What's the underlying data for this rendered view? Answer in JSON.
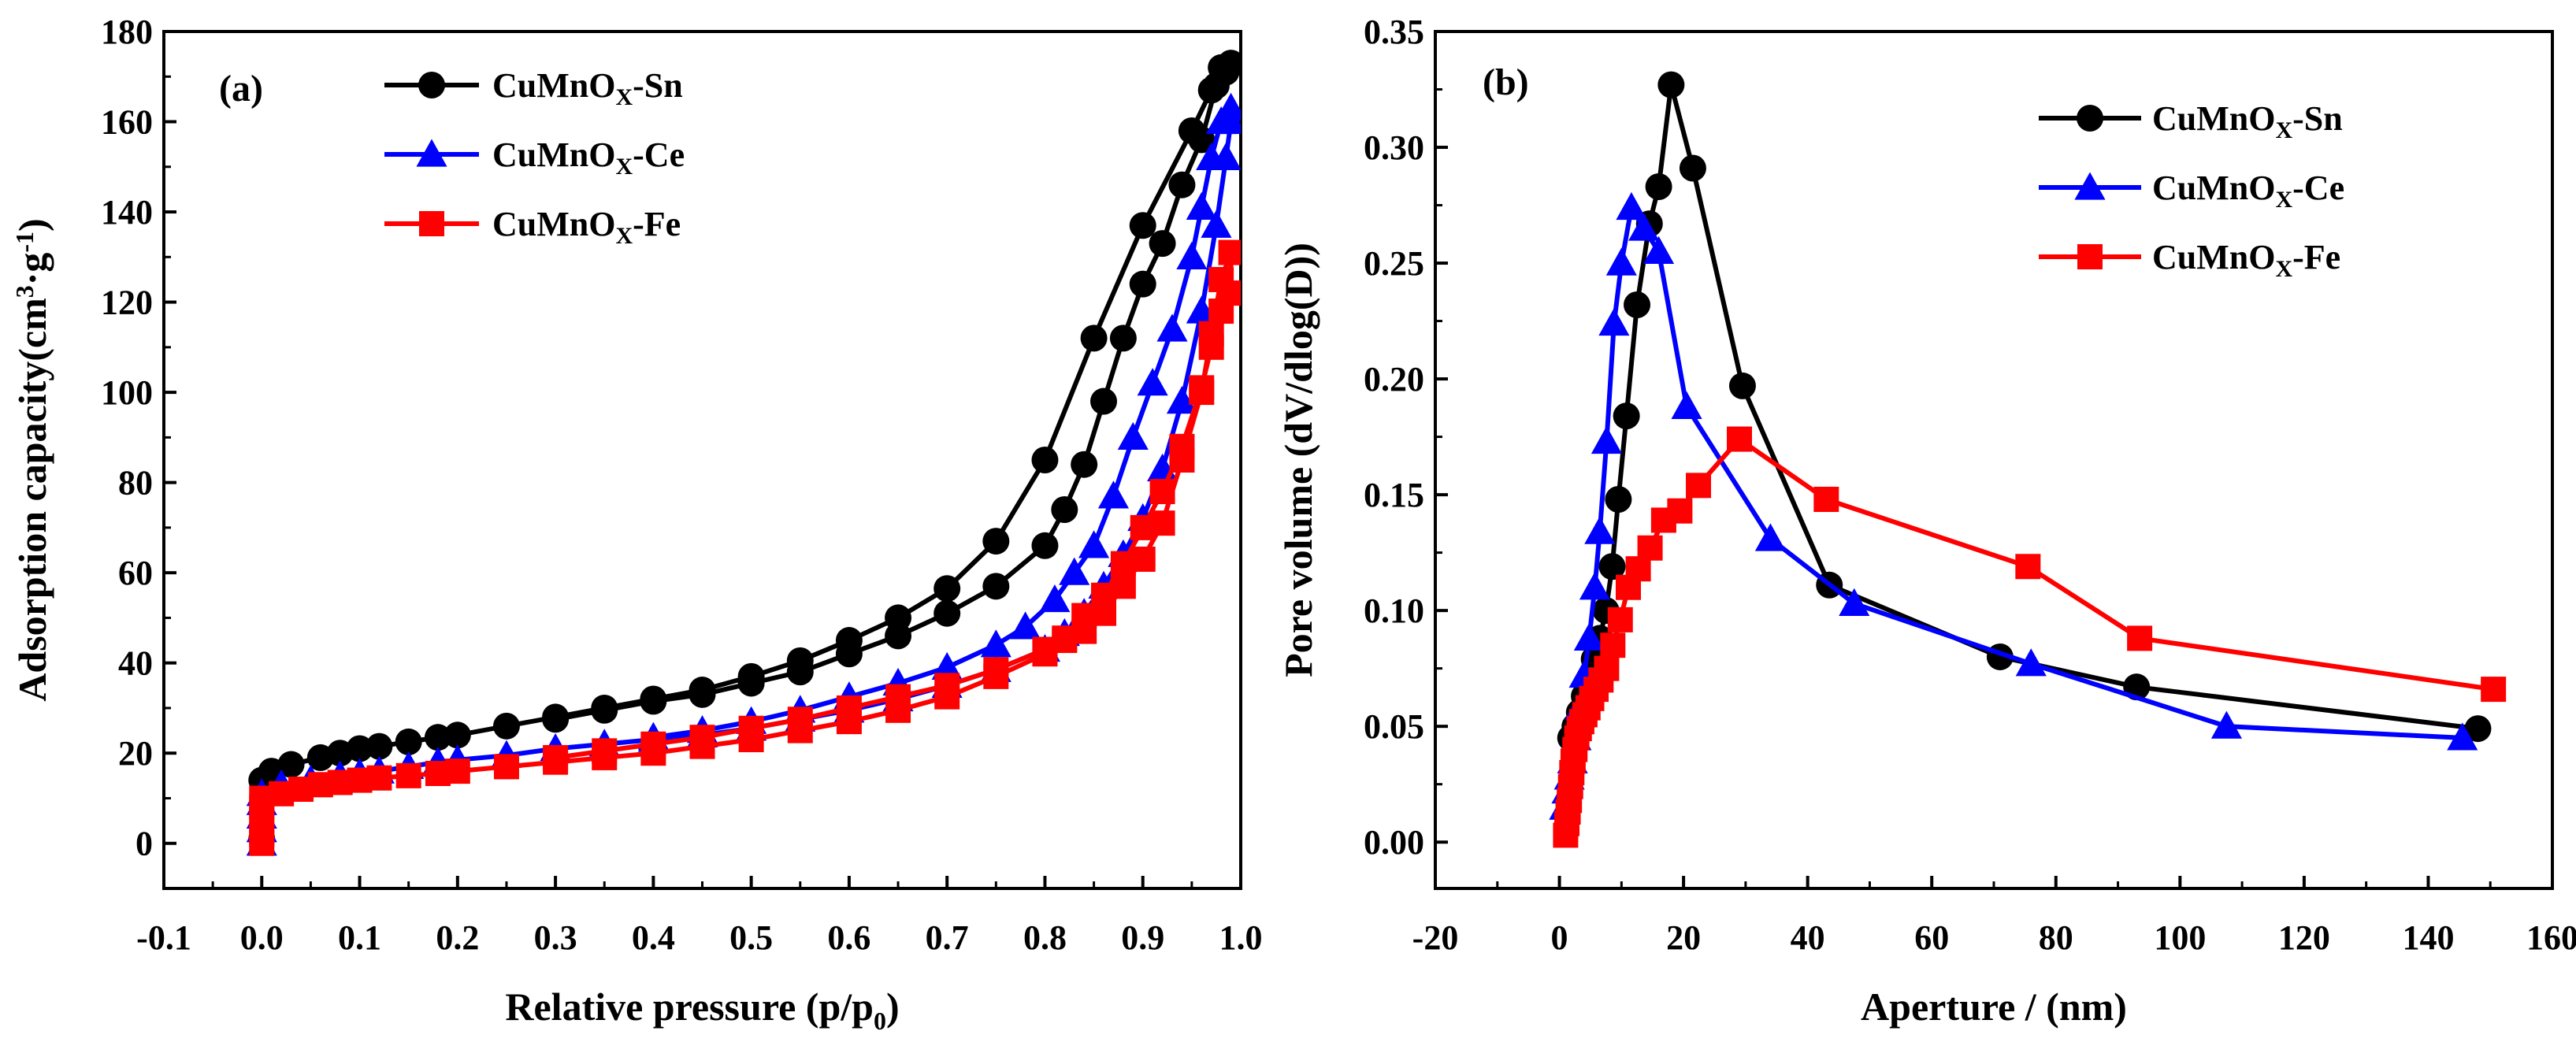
{
  "chart_data": [
    {
      "type": "line",
      "panel_label": "(a)",
      "xlabel": {
        "main": "Relative pressure (p/p",
        "sub": "0",
        "tail": ")"
      },
      "ylabel": {
        "main": "Adsorption capacity(cm",
        "sup1": "3",
        "mid": "·g",
        "sup2": "-1",
        "tail": ")"
      },
      "xlim": [
        -0.1,
        1.0
      ],
      "ylim": [
        -10,
        180
      ],
      "xticks": [
        "-0.1",
        "0.0",
        "0.1",
        "0.2",
        "0.3",
        "0.4",
        "0.5",
        "0.6",
        "0.7",
        "0.8",
        "0.9",
        "1.0"
      ],
      "xtick_values": [
        -0.1,
        0.0,
        0.1,
        0.2,
        0.3,
        0.4,
        0.5,
        0.6,
        0.7,
        0.8,
        0.9,
        1.0
      ],
      "yticks": [
        "0",
        "20",
        "40",
        "60",
        "80",
        "100",
        "120",
        "140",
        "160",
        "180"
      ],
      "ytick_values": [
        0,
        20,
        40,
        60,
        80,
        100,
        120,
        140,
        160,
        180
      ],
      "legend_position": "top-left",
      "series": [
        {
          "name": "CuMnOX-Sn",
          "label_main": "CuMnO",
          "label_sub": "X",
          "label_tail": "-Sn",
          "color": "#000000",
          "marker": "circle",
          "x": [
            0.0,
            0.0,
            0.01,
            0.03,
            0.06,
            0.08,
            0.1,
            0.12,
            0.15,
            0.18,
            0.2,
            0.25,
            0.3,
            0.35,
            0.4,
            0.45,
            0.5,
            0.55,
            0.6,
            0.65,
            0.7,
            0.75,
            0.8,
            0.85,
            0.9,
            0.95,
            0.97,
            0.98,
            0.99,
            0.985,
            0.975,
            0.96,
            0.94,
            0.92,
            0.9,
            0.88,
            0.86,
            0.84,
            0.82,
            0.8,
            0.75,
            0.7,
            0.65,
            0.6,
            0.55,
            0.5,
            0.45,
            0.4,
            0.35,
            0.3
          ],
          "y": [
            1,
            14,
            16,
            17.5,
            19,
            20,
            21,
            21.5,
            22.5,
            23.5,
            24,
            26,
            28,
            30,
            32,
            34,
            37,
            40.5,
            45,
            50,
            56.5,
            67,
            85,
            112,
            137,
            158,
            167,
            172,
            173,
            171,
            168,
            156,
            146,
            133,
            124,
            112,
            98,
            84,
            74,
            66,
            57,
            51,
            46,
            42,
            38,
            35.5,
            33,
            31.5,
            29.5,
            27.5
          ]
        },
        {
          "name": "CuMnOX-Ce",
          "label_main": "CuMnO",
          "label_sub": "X",
          "label_tail": "-Ce",
          "color": "#0000ff",
          "marker": "triangle",
          "x": [
            0.0,
            0.0,
            0.0,
            0.0,
            0.0,
            0.02,
            0.05,
            0.08,
            0.1,
            0.12,
            0.15,
            0.18,
            0.2,
            0.25,
            0.3,
            0.35,
            0.4,
            0.45,
            0.5,
            0.55,
            0.6,
            0.65,
            0.7,
            0.75,
            0.8,
            0.82,
            0.84,
            0.86,
            0.88,
            0.9,
            0.92,
            0.94,
            0.96,
            0.975,
            0.985,
            0.99,
            0.99,
            0.98,
            0.97,
            0.96,
            0.95,
            0.93,
            0.91,
            0.89,
            0.87,
            0.85,
            0.83,
            0.81,
            0.78,
            0.75,
            0.7,
            0.65,
            0.6,
            0.55,
            0.5,
            0.45,
            0.4
          ],
          "y": [
            0,
            3,
            6,
            9,
            11,
            13,
            14,
            15,
            15.5,
            16,
            17,
            18,
            18.5,
            19.5,
            21,
            22,
            23,
            24,
            25.5,
            27.5,
            29.5,
            32,
            35,
            38.5,
            43,
            46.5,
            51,
            57,
            64,
            72,
            83,
            98,
            118,
            137,
            152,
            160,
            163,
            160,
            152,
            141,
            130,
            114,
            102,
            90,
            77,
            66,
            60,
            54,
            48,
            44,
            39,
            35.5,
            32.5,
            29.5,
            27,
            25,
            23.5
          ]
        },
        {
          "name": "CuMnOX-Fe",
          "label_main": "CuMnO",
          "label_sub": "X",
          "label_tail": "-Fe",
          "color": "#ff0000",
          "marker": "square",
          "x": [
            0.0,
            0.0,
            0.0,
            0.0,
            0.0,
            0.02,
            0.04,
            0.06,
            0.08,
            0.1,
            0.12,
            0.15,
            0.18,
            0.2,
            0.25,
            0.3,
            0.35,
            0.4,
            0.45,
            0.5,
            0.55,
            0.6,
            0.65,
            0.7,
            0.75,
            0.8,
            0.82,
            0.84,
            0.86,
            0.88,
            0.9,
            0.92,
            0.94,
            0.96,
            0.97,
            0.98,
            0.99,
            0.99,
            0.98,
            0.97,
            0.96,
            0.94,
            0.92,
            0.9,
            0.88,
            0.86,
            0.84,
            0.82,
            0.8,
            0.75,
            0.7,
            0.65,
            0.6,
            0.55,
            0.5,
            0.45,
            0.4,
            0.35,
            0.3
          ],
          "y": [
            0,
            2,
            5,
            8,
            10,
            11,
            12,
            13,
            13.5,
            14,
            14.5,
            15,
            15.5,
            16,
            17,
            18,
            19,
            20,
            21.5,
            23,
            25,
            27,
            29.5,
            32.5,
            37,
            42,
            45.5,
            50.5,
            55,
            62,
            70,
            78,
            88,
            101,
            110,
            118,
            122,
            131,
            125,
            113,
            100,
            85,
            71,
            63,
            57,
            51,
            47,
            45,
            43,
            38.5,
            35,
            32.5,
            30,
            27.5,
            25.5,
            23.5,
            22,
            20.5,
            19
          ]
        }
      ]
    },
    {
      "type": "line",
      "panel_label": "(b)",
      "xlabel": {
        "main": "Aperture / (nm)"
      },
      "ylabel": {
        "main": "Pore volume (dV/dlog(D))"
      },
      "xlim": [
        -20,
        160
      ],
      "ylim": [
        -0.02,
        0.35
      ],
      "xticks": [
        "-20",
        "0",
        "20",
        "40",
        "60",
        "80",
        "100",
        "120",
        "140",
        "160"
      ],
      "xtick_values": [
        -20,
        0,
        20,
        40,
        60,
        80,
        100,
        120,
        140,
        160
      ],
      "yticks": [
        "0.00",
        "0.05",
        "0.10",
        "0.15",
        "0.20",
        "0.25",
        "0.30",
        "0.35"
      ],
      "ytick_values": [
        0.0,
        0.05,
        0.1,
        0.15,
        0.2,
        0.25,
        0.3,
        0.35
      ],
      "legend_position": "top-right",
      "series": [
        {
          "name": "CuMnOX-Sn",
          "label_main": "CuMnO",
          "label_sub": "X",
          "label_tail": "-Sn",
          "color": "#000000",
          "marker": "circle",
          "x": [
            1.8,
            2.5,
            3.2,
            4.0,
            4.8,
            5.6,
            6.5,
            7.5,
            8.5,
            9.5,
            10.8,
            12.5,
            14.5,
            16.0,
            18.0,
            21.5,
            29.5,
            43.5,
            71.0,
            93.0,
            148.0
          ],
          "y": [
            0.045,
            0.05,
            0.056,
            0.063,
            0.07,
            0.079,
            0.088,
            0.1,
            0.119,
            0.148,
            0.184,
            0.232,
            0.267,
            0.283,
            0.327,
            0.291,
            0.197,
            0.111,
            0.08,
            0.067,
            0.049
          ]
        },
        {
          "name": "CuMnOX-Ce",
          "label_main": "CuMnO",
          "label_sub": "X",
          "label_tail": "-Ce",
          "color": "#0000ff",
          "marker": "triangle",
          "x": [
            0.8,
            1.2,
            1.6,
            2.1,
            2.7,
            3.3,
            4.0,
            4.8,
            5.7,
            6.5,
            7.6,
            8.8,
            10.0,
            11.6,
            13.6,
            16.0,
            20.5,
            34.0,
            47.5,
            76.0,
            107.5,
            145.5
          ],
          "y": [
            0.015,
            0.022,
            0.028,
            0.035,
            0.045,
            0.058,
            0.072,
            0.088,
            0.11,
            0.134,
            0.173,
            0.224,
            0.25,
            0.274,
            0.265,
            0.255,
            0.188,
            0.131,
            0.103,
            0.077,
            0.05,
            0.045
          ]
        },
        {
          "name": "CuMnOX-Fe",
          "label_main": "CuMnO",
          "label_sub": "X",
          "label_tail": "-Fe",
          "color": "#ff0000",
          "marker": "square",
          "x": [
            1.0,
            1.2,
            1.4,
            1.6,
            1.8,
            2.0,
            2.2,
            2.5,
            2.8,
            3.2,
            3.6,
            4.1,
            4.6,
            5.2,
            5.9,
            6.7,
            7.6,
            8.6,
            9.8,
            11.1,
            12.7,
            14.6,
            16.8,
            19.4,
            22.4,
            29.0,
            43.0,
            75.5,
            93.5,
            150.5
          ],
          "y": [
            0.003,
            0.008,
            0.013,
            0.018,
            0.024,
            0.03,
            0.035,
            0.04,
            0.045,
            0.049,
            0.052,
            0.055,
            0.058,
            0.062,
            0.066,
            0.07,
            0.075,
            0.085,
            0.096,
            0.11,
            0.118,
            0.127,
            0.139,
            0.143,
            0.154,
            0.174,
            0.148,
            0.119,
            0.088,
            0.066
          ]
        }
      ]
    }
  ]
}
